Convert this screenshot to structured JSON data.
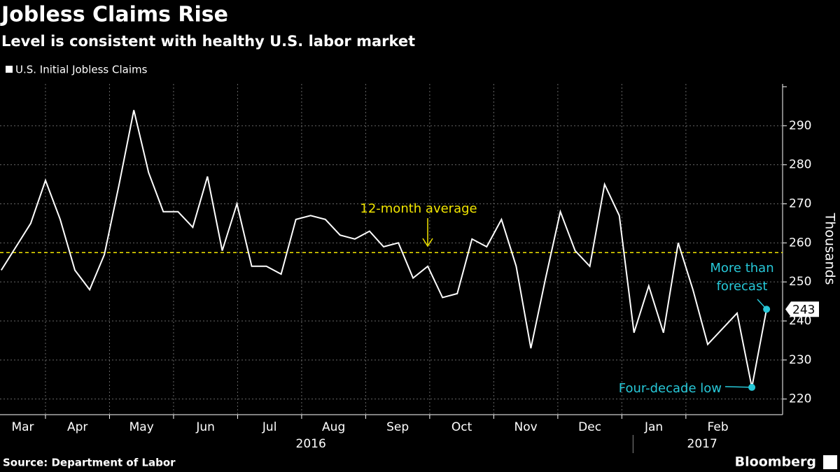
{
  "chart_data": {
    "type": "line",
    "title": "Jobless Claims Rise",
    "subtitle": "Level is consistent with healthy U.S. labor market",
    "y_label": "Thousands",
    "source": "Source: Department of Labor",
    "brand": "Bloomberg",
    "x": [
      0.31,
      0.54,
      0.77,
      1.0,
      1.23,
      1.46,
      1.69,
      1.92,
      2.15,
      2.38,
      2.61,
      2.84,
      3.07,
      3.3,
      3.53,
      3.76,
      3.99,
      4.22,
      4.45,
      4.68,
      4.91,
      5.14,
      5.37,
      5.6,
      5.83,
      6.06,
      6.28,
      6.51,
      6.74,
      6.97,
      7.2,
      7.43,
      7.66,
      7.89,
      8.12,
      8.35,
      8.58,
      8.81,
      9.04,
      9.27,
      9.5,
      9.73,
      9.96,
      10.19,
      10.42,
      10.65,
      10.88,
      11.11,
      11.34,
      11.57,
      11.8,
      12.03,
      12.26
    ],
    "series": [
      {
        "name": "U.S. Initial Jobless Claims",
        "color": "#ffffff",
        "values": [
          253,
          259,
          265,
          276,
          266,
          253,
          248,
          257,
          275,
          294,
          278,
          268,
          268,
          264,
          277,
          258,
          270,
          254,
          254,
          252,
          266,
          267,
          266,
          262,
          261,
          263,
          259,
          260,
          251,
          254,
          246,
          247,
          261,
          259,
          266,
          254,
          233,
          251,
          268,
          258,
          254,
          275,
          267,
          237,
          249,
          237,
          260,
          248,
          234,
          238,
          242,
          223,
          243
        ]
      }
    ],
    "xlim": [
      0.29,
      12.51
    ],
    "xticks": [
      {
        "value": 0,
        "label": "Mar"
      },
      {
        "value": 1,
        "label": "Apr"
      },
      {
        "value": 2,
        "label": "May"
      },
      {
        "value": 3,
        "label": "Jun"
      },
      {
        "value": 4,
        "label": "Jul"
      },
      {
        "value": 5,
        "label": "Aug"
      },
      {
        "value": 6,
        "label": "Sep"
      },
      {
        "value": 7,
        "label": "Oct"
      },
      {
        "value": 8,
        "label": "Nov"
      },
      {
        "value": 9,
        "label": "Dec"
      },
      {
        "value": 10,
        "label": "Jan"
      },
      {
        "value": 11,
        "label": "Feb"
      }
    ],
    "year_ticks": [
      {
        "value": 0,
        "label": "2016"
      },
      {
        "value": 10,
        "label": "2017"
      }
    ],
    "ylim": [
      216,
      300
    ],
    "yticks": [
      220,
      230,
      240,
      250,
      260,
      270,
      280,
      290
    ],
    "grid": true,
    "reference_line": {
      "value": 257.5,
      "label": "12-month average",
      "color": "#f2e600"
    },
    "annotations": [
      {
        "text": "Four-decade low",
        "color": "#27c8d8"
      },
      {
        "text": "More than forecast",
        "color": "#27c8d8"
      }
    ]
  }
}
